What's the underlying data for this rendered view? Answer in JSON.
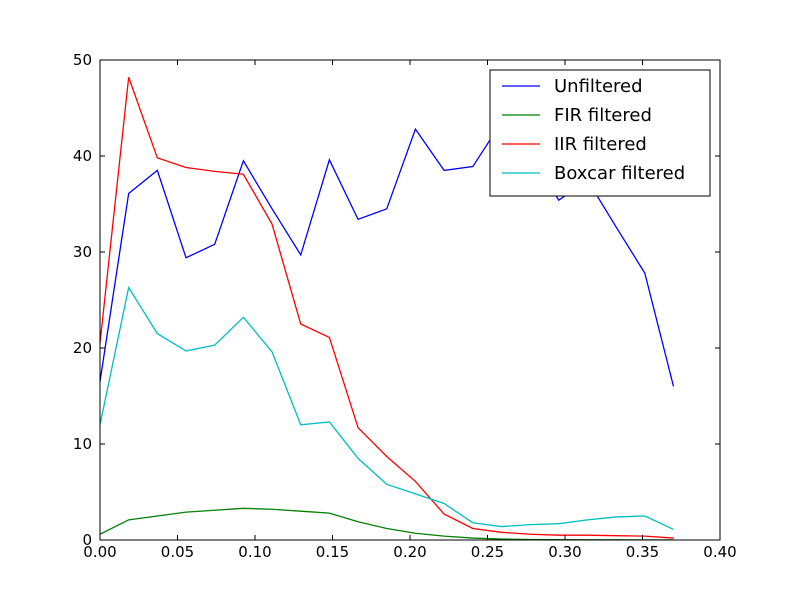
{
  "chart_data": {
    "type": "line",
    "title": "",
    "xlabel": "",
    "ylabel": "",
    "xlim": [
      0.0,
      0.4
    ],
    "ylim": [
      0,
      50
    ],
    "xticks": [
      "0.00",
      "0.05",
      "0.10",
      "0.15",
      "0.20",
      "0.25",
      "0.30",
      "0.35",
      "0.40"
    ],
    "yticks": [
      "0",
      "10",
      "20",
      "30",
      "40",
      "50"
    ],
    "grid": false,
    "legend_position": "top-right",
    "x": [
      0.0,
      0.0185,
      0.037,
      0.0555,
      0.074,
      0.0925,
      0.111,
      0.1295,
      0.148,
      0.1665,
      0.185,
      0.2035,
      0.222,
      0.2405,
      0.259,
      0.2775,
      0.296,
      0.3145,
      0.333,
      0.3515,
      0.37
    ],
    "series": [
      {
        "name": "Unfiltered",
        "color": "#0000ff",
        "values": [
          16.5,
          36.1,
          38.5,
          29.4,
          30.8,
          39.5,
          34.5,
          29.7,
          39.6,
          33.4,
          34.5,
          42.8,
          38.5,
          38.9,
          43.5,
          40.2,
          35.4,
          37.5,
          32.6,
          27.8,
          16.0
        ]
      },
      {
        "name": "FIR filtered",
        "color": "#008000",
        "values": [
          0.6,
          2.1,
          2.5,
          2.9,
          3.1,
          3.3,
          3.2,
          3.0,
          2.8,
          1.9,
          1.2,
          0.7,
          0.4,
          0.2,
          0.1,
          0.05,
          0.03,
          0.02,
          0.02,
          0.01,
          0.01
        ]
      },
      {
        "name": "IIR filtered",
        "color": "#ff0000",
        "values": [
          20.5,
          48.2,
          39.8,
          38.8,
          38.4,
          38.1,
          32.9,
          22.5,
          21.1,
          11.7,
          8.7,
          6.1,
          2.7,
          1.2,
          0.8,
          0.6,
          0.5,
          0.5,
          0.45,
          0.4,
          0.2
        ]
      },
      {
        "name": "Boxcar filtered",
        "color": "#00bfbf",
        "values": [
          12.0,
          26.3,
          21.5,
          19.7,
          20.3,
          23.2,
          19.6,
          12.0,
          12.3,
          8.5,
          5.8,
          4.8,
          3.8,
          1.8,
          1.4,
          1.6,
          1.7,
          2.1,
          2.4,
          2.5,
          1.1
        ]
      }
    ]
  }
}
